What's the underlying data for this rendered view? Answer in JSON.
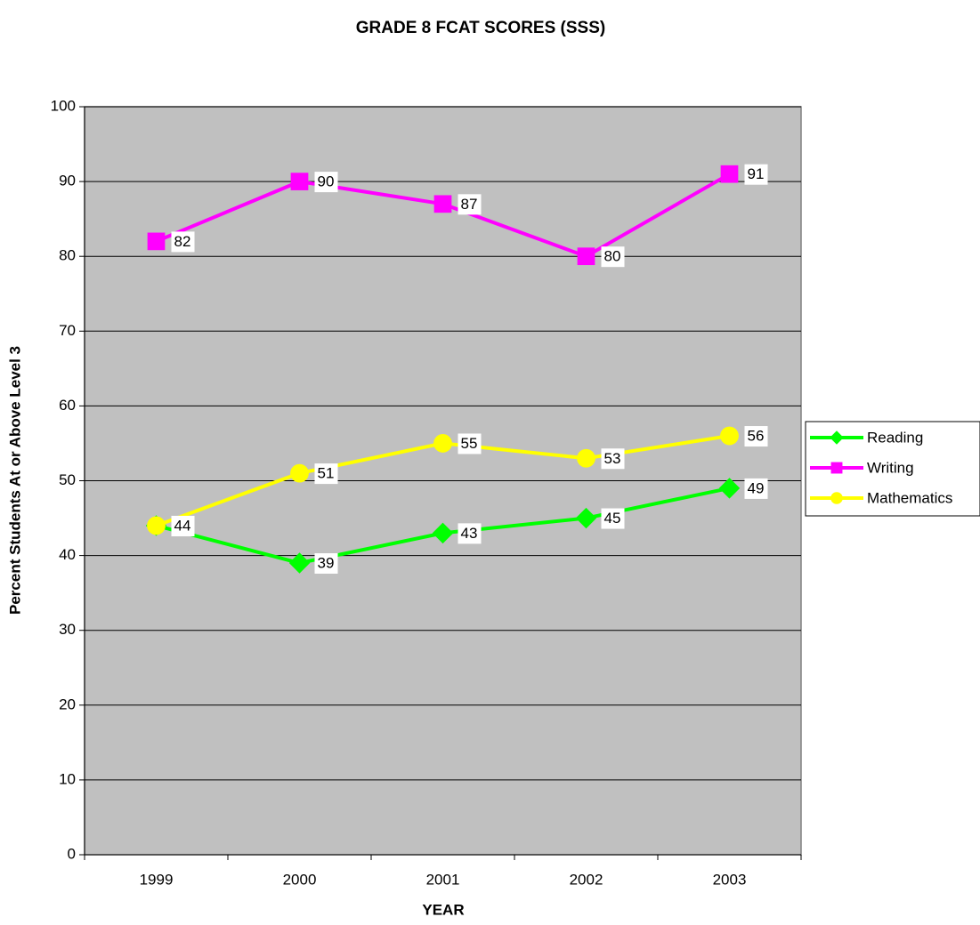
{
  "chart_data": {
    "type": "line",
    "title": "GRADE 8 FCAT SCORES (SSS)",
    "x_label": "YEAR",
    "y_label": "Percent Students At or Above Level 3",
    "categories": [
      "1999",
      "2000",
      "2001",
      "2002",
      "2003"
    ],
    "series": [
      {
        "name": "Reading",
        "color": "#00ff00",
        "marker": "diamond",
        "values": [
          44,
          39,
          43,
          45,
          49
        ]
      },
      {
        "name": "Writing",
        "color": "#ff00ff",
        "marker": "square",
        "values": [
          82,
          90,
          87,
          80,
          91
        ]
      },
      {
        "name": "Mathematics",
        "color": "#ffff00",
        "marker": "circle",
        "values": [
          44,
          51,
          55,
          53,
          56
        ]
      }
    ],
    "ylim": [
      0,
      100
    ],
    "yticks": [
      0,
      10,
      20,
      30,
      40,
      50,
      60,
      70,
      80,
      90,
      100
    ],
    "grid": true,
    "legend": "right"
  }
}
